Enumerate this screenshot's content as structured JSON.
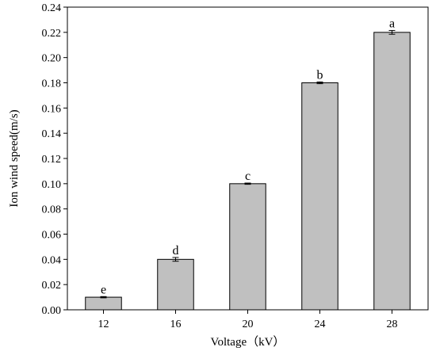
{
  "chart_data": {
    "type": "bar",
    "title": "",
    "xlabel": "Voltage（kV）",
    "ylabel": "Ion wind speed(m/s)",
    "categories": [
      "12",
      "16",
      "20",
      "24",
      "28"
    ],
    "values": [
      0.01,
      0.04,
      0.1,
      0.18,
      0.22
    ],
    "error": [
      0.0005,
      0.0015,
      0.0005,
      0.0007,
      0.0015
    ],
    "significance_labels": [
      "e",
      "d",
      "c",
      "b",
      "a"
    ],
    "ylim": [
      0,
      0.24
    ],
    "yticks": [
      "0.00",
      "0.02",
      "0.04",
      "0.06",
      "0.08",
      "0.10",
      "0.12",
      "0.14",
      "0.16",
      "0.18",
      "0.20",
      "0.22",
      "0.24"
    ],
    "grid": false,
    "legend": "none",
    "colors": {
      "bar_fill": "#c0c0c0",
      "bar_stroke": "#000000",
      "axis": "#000000"
    }
  }
}
